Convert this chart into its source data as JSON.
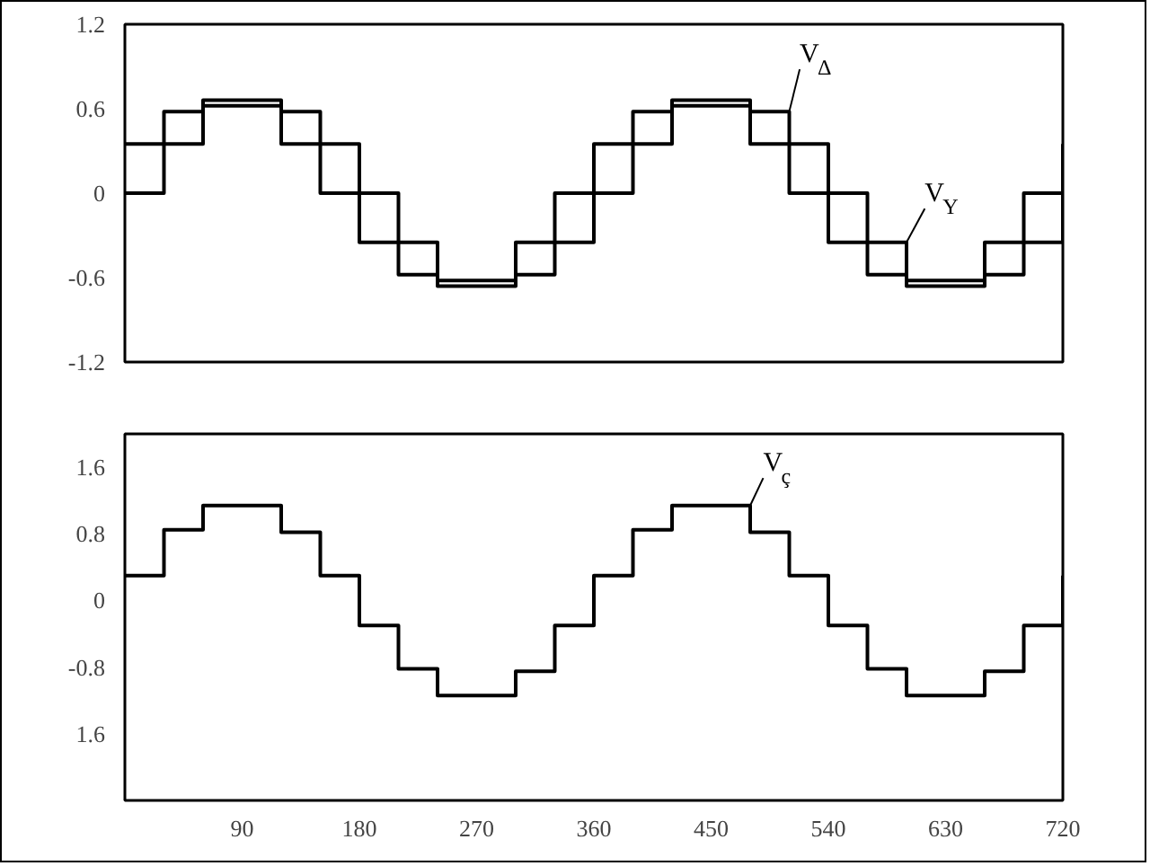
{
  "chart_data": [
    {
      "type": "step",
      "x": [
        0,
        30,
        60,
        90,
        120,
        150,
        180,
        210,
        240,
        270,
        300,
        330,
        360,
        390,
        420,
        450,
        480,
        510,
        540,
        570,
        600,
        630,
        660,
        690,
        720
      ],
      "xlim": [
        0,
        720
      ],
      "ylim": [
        -1.2,
        1.2
      ],
      "yticks": [
        1.2,
        0.6,
        0,
        -0.6,
        -1.2
      ],
      "xticks": [
        90,
        180,
        270,
        360,
        450,
        540,
        630,
        720
      ],
      "tick_labels": "y",
      "grid": false,
      "series": [
        {
          "name": "V$_{Δ}$",
          "color": "#000000",
          "values": [
            0.35,
            0.58,
            0.66,
            0.66,
            0.58,
            0.35,
            -0.35,
            -0.58,
            -0.66,
            -0.66,
            -0.58,
            -0.35,
            0.35,
            0.58,
            0.66,
            0.66,
            0.58,
            0.35,
            -0.35,
            -0.58,
            -0.66,
            -0.66,
            -0.58,
            -0.35,
            0.35
          ]
        },
        {
          "name": "V$_{Y}$",
          "color": "#000000",
          "values": [
            0,
            0.35,
            0.62,
            0.62,
            0.35,
            0,
            0,
            -0.35,
            -0.62,
            -0.62,
            -0.35,
            0,
            0,
            0.35,
            0.62,
            0.62,
            0.35,
            0,
            0,
            -0.35,
            -0.62,
            -0.62,
            -0.35,
            0,
            0
          ]
        }
      ]
    },
    {
      "type": "step",
      "x": [
        0,
        30,
        60,
        90,
        120,
        150,
        180,
        210,
        240,
        270,
        300,
        330,
        360,
        390,
        420,
        450,
        480,
        510,
        540,
        570,
        600,
        630,
        660,
        690,
        720
      ],
      "xlim": [
        0,
        720
      ],
      "ylim": [
        -2.4,
        2.0
      ],
      "yticks": [
        1.6,
        0.8,
        0,
        -0.8,
        {
          "value": -1.6,
          "label": "1.6"
        }
      ],
      "xticks": [
        90,
        180,
        270,
        360,
        450,
        540,
        630,
        720
      ],
      "grid": false,
      "series": [
        {
          "name": "V$_{ç}$",
          "color": "#000000",
          "values": [
            0.3,
            0.85,
            1.14,
            1.14,
            0.82,
            0.3,
            -0.3,
            -0.82,
            -1.14,
            -1.14,
            -0.85,
            -0.3,
            0.3,
            0.85,
            1.14,
            1.14,
            0.82,
            0.3,
            -0.3,
            -0.82,
            -1.14,
            -1.14,
            -0.85,
            -0.3,
            0.3
          ]
        }
      ]
    }
  ]
}
